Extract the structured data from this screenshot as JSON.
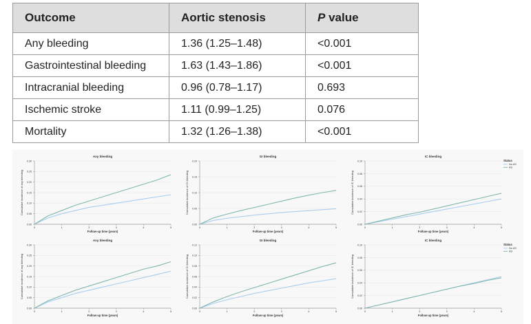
{
  "table": {
    "headers": {
      "outcome": "Outcome",
      "aortic": "Aortic stenosis",
      "p_italic": "P",
      "p_rest": " value"
    },
    "rows": [
      {
        "outcome": "Any bleeding",
        "aortic": "1.36 (1.25–1.48)",
        "p": "<0.001"
      },
      {
        "outcome": "Gastrointestinal bleeding",
        "aortic": "1.63 (1.43–1.86)",
        "p": "<0.001"
      },
      {
        "outcome": "Intracranial bleeding",
        "aortic": "0.96 (0.78–1.17)",
        "p": "0.693"
      },
      {
        "outcome": "Ischemic stroke",
        "aortic": "1.11 (0.99–1.25)",
        "p": "0.076"
      },
      {
        "outcome": "Mortality",
        "aortic": "1.32 (1.26–1.38)",
        "p": "<0.001"
      }
    ]
  },
  "colors": {
    "as": "#7fb7ae",
    "noas": "#a8cdf0",
    "axis": "#9a9a9a",
    "grid": "#e6e6e6"
  },
  "legend": {
    "title": "Status",
    "items": [
      "No AS",
      "AS"
    ]
  },
  "chart_data": [
    {
      "type": "line",
      "row": 1,
      "title": "Any bleeding",
      "xlabel": "Follow-up time (years)",
      "ylabel": "Cumulative incidence of any bleeding",
      "x": [
        0,
        0.5,
        1,
        1.5,
        2,
        2.5,
        3,
        3.5,
        4,
        4.5,
        5
      ],
      "xticks": [
        0,
        1,
        2,
        3,
        4,
        5
      ],
      "yticks": [
        0,
        0.05,
        0.1,
        0.15,
        0.2,
        0.25,
        0.3
      ],
      "yticklabels": [
        "0.00",
        "0.05",
        "0.10",
        "0.15",
        "0.20",
        "0.25",
        "0.30"
      ],
      "ylim": [
        0,
        0.3
      ],
      "legend": false,
      "series": [
        {
          "name": "AS",
          "values": [
            0,
            0.04,
            0.065,
            0.09,
            0.11,
            0.13,
            0.15,
            0.17,
            0.19,
            0.21,
            0.235
          ]
        },
        {
          "name": "No AS",
          "values": [
            0,
            0.03,
            0.05,
            0.065,
            0.08,
            0.09,
            0.1,
            0.11,
            0.12,
            0.13,
            0.14
          ]
        }
      ]
    },
    {
      "type": "line",
      "row": 1,
      "title": "GI bleeding",
      "xlabel": "Follow-up time (years)",
      "ylabel": "Cumulative incidence of GI bleeding",
      "x": [
        0,
        0.5,
        1,
        1.5,
        2,
        2.5,
        3,
        3.5,
        4,
        4.5,
        5
      ],
      "xticks": [
        0,
        1,
        2,
        3,
        4,
        5
      ],
      "yticks": [
        0,
        0.05,
        0.1,
        0.15,
        0.2
      ],
      "yticklabels": [
        "0.00",
        "0.05",
        "0.10",
        "0.15",
        "0.20"
      ],
      "ylim": [
        0,
        0.2
      ],
      "legend": false,
      "series": [
        {
          "name": "AS",
          "values": [
            0,
            0.02,
            0.032,
            0.043,
            0.053,
            0.063,
            0.073,
            0.083,
            0.092,
            0.1,
            0.107
          ]
        },
        {
          "name": "No AS",
          "values": [
            0,
            0.012,
            0.019,
            0.024,
            0.029,
            0.033,
            0.037,
            0.04,
            0.043,
            0.046,
            0.049
          ]
        }
      ]
    },
    {
      "type": "line",
      "row": 1,
      "title": "IC bleeding",
      "xlabel": "Follow-up time (years)",
      "ylabel": "Cumulative incidence of IC bleeding",
      "x": [
        0,
        0.5,
        1,
        1.5,
        2,
        2.5,
        3,
        3.5,
        4,
        4.5,
        5
      ],
      "xticks": [
        0,
        1,
        2,
        3,
        4,
        5
      ],
      "yticks": [
        0,
        0.02,
        0.04,
        0.06,
        0.08,
        0.1
      ],
      "yticklabels": [
        "0.00",
        "0.02",
        "0.04",
        "0.06",
        "0.08",
        "0.10"
      ],
      "ylim": [
        0,
        0.1
      ],
      "legend": true,
      "series": [
        {
          "name": "AS",
          "values": [
            0,
            0.005,
            0.01,
            0.015,
            0.019,
            0.024,
            0.029,
            0.034,
            0.039,
            0.044,
            0.049
          ]
        },
        {
          "name": "No AS",
          "values": [
            0,
            0.004,
            0.008,
            0.012,
            0.016,
            0.02,
            0.024,
            0.028,
            0.032,
            0.036,
            0.04
          ]
        }
      ]
    },
    {
      "type": "line",
      "row": 2,
      "title": "Any bleeding",
      "xlabel": "Follow-up time (years)",
      "ylabel": "Cumulative incidence of any bleeding",
      "x": [
        0,
        0.5,
        1,
        1.5,
        2,
        2.5,
        3,
        3.5,
        4,
        4.5,
        5
      ],
      "xticks": [
        0,
        1,
        2,
        3,
        4,
        5
      ],
      "yticks": [
        0,
        0.05,
        0.1,
        0.15,
        0.2,
        0.25,
        0.3
      ],
      "yticklabels": [
        "0.00",
        "0.05",
        "0.10",
        "0.15",
        "0.20",
        "0.25",
        "0.30"
      ],
      "ylim": [
        0,
        0.3
      ],
      "legend": false,
      "series": [
        {
          "name": "AS",
          "values": [
            0,
            0.035,
            0.06,
            0.085,
            0.105,
            0.125,
            0.145,
            0.165,
            0.185,
            0.2,
            0.22
          ]
        },
        {
          "name": "No AS",
          "values": [
            0,
            0.03,
            0.05,
            0.07,
            0.085,
            0.1,
            0.115,
            0.13,
            0.145,
            0.16,
            0.175
          ]
        }
      ]
    },
    {
      "type": "line",
      "row": 2,
      "title": "GI bleeding",
      "xlabel": "Follow-up time (years)",
      "ylabel": "Cumulative incidence of GI bleeding",
      "x": [
        0,
        0.5,
        1,
        1.5,
        2,
        2.5,
        3,
        3.5,
        4,
        4.5,
        5
      ],
      "xticks": [
        0,
        1,
        2,
        3,
        4,
        5
      ],
      "yticks": [
        0,
        0.02,
        0.04,
        0.06,
        0.08,
        0.1,
        0.12
      ],
      "yticklabels": [
        "0.00",
        "0.02",
        "0.04",
        "0.06",
        "0.08",
        "0.10",
        "0.12"
      ],
      "ylim": [
        0,
        0.12
      ],
      "legend": false,
      "series": [
        {
          "name": "AS",
          "values": [
            0,
            0.012,
            0.022,
            0.031,
            0.039,
            0.047,
            0.055,
            0.063,
            0.071,
            0.079,
            0.086
          ]
        },
        {
          "name": "No AS",
          "values": [
            0,
            0.009,
            0.016,
            0.022,
            0.028,
            0.033,
            0.038,
            0.043,
            0.048,
            0.052,
            0.056
          ]
        }
      ]
    },
    {
      "type": "line",
      "row": 2,
      "title": "IC bleeding",
      "xlabel": "Follow-up time (years)",
      "ylabel": "Cumulative incidence of IC bleeding",
      "x": [
        0,
        0.5,
        1,
        1.5,
        2,
        2.5,
        3,
        3.5,
        4,
        4.5,
        5
      ],
      "xticks": [
        0,
        1,
        2,
        3,
        4,
        5
      ],
      "yticks": [
        0,
        0.02,
        0.04,
        0.06,
        0.08,
        0.1
      ],
      "yticklabels": [
        "0.00",
        "0.02",
        "0.04",
        "0.06",
        "0.08",
        "0.10"
      ],
      "ylim": [
        0,
        0.1
      ],
      "legend": true,
      "series": [
        {
          "name": "AS",
          "values": [
            0,
            0.005,
            0.01,
            0.015,
            0.02,
            0.025,
            0.03,
            0.035,
            0.039,
            0.044,
            0.048
          ]
        },
        {
          "name": "No AS",
          "values": [
            0,
            0.005,
            0.01,
            0.015,
            0.02,
            0.025,
            0.03,
            0.035,
            0.04,
            0.045,
            0.05
          ]
        }
      ]
    }
  ]
}
